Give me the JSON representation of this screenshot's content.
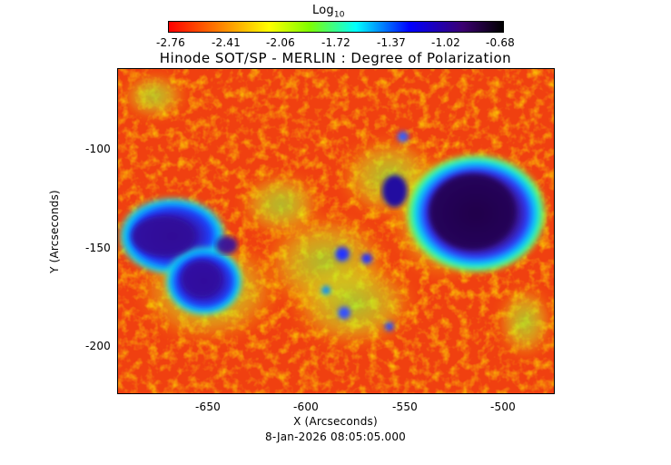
{
  "colorbar": {
    "title_main": "Log",
    "title_sub": "10",
    "ticks": [
      "-2.76",
      "-2.41",
      "-2.06",
      "-1.72",
      "-1.37",
      "-1.02",
      "-0.68"
    ],
    "colors": [
      "#ff0000",
      "#ff7f00",
      "#ffff00",
      "#7fff00",
      "#00ffff",
      "#0000ff",
      "#3b0070",
      "#000000"
    ]
  },
  "plot": {
    "title": "Hinode SOT/SP - MERLIN : Degree of Polarization",
    "xlabel": "X (Arcseconds)",
    "ylabel": "Y (Arcseconds)",
    "x_ticks": [
      "-650",
      "-600",
      "-550",
      "-500"
    ],
    "y_ticks": [
      "-100",
      "-150",
      "-200"
    ],
    "timestamp": "8-Jan-2026 08:05:05.000"
  }
}
